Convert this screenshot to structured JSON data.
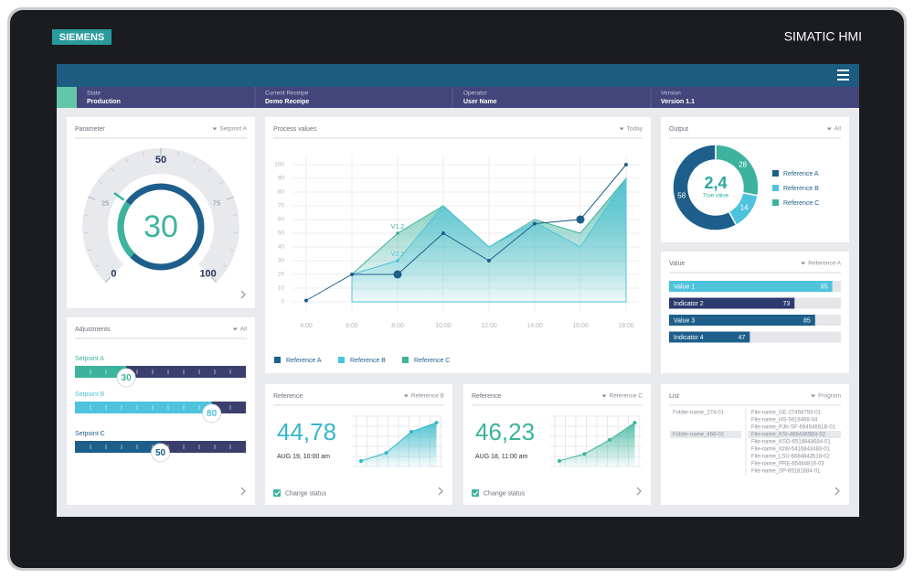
{
  "header": {
    "brand": "SIEMENS",
    "product": "SIMATIC HMI"
  },
  "status": [
    {
      "label": "State",
      "value": "Production"
    },
    {
      "label": "Current Receipe",
      "value": "Demo Receipe"
    },
    {
      "label": "Operator",
      "value": "User Name"
    },
    {
      "label": "Version",
      "value": "Version 1.1"
    }
  ],
  "parameter": {
    "title": "Parameter",
    "selector": "Setpoint A",
    "value": 30,
    "lim": [
      0,
      100
    ],
    "ticks": [
      0,
      25,
      50,
      75,
      100
    ]
  },
  "adjustments": {
    "title": "Adjustments",
    "selector": "All",
    "lim": [
      0,
      100
    ],
    "sliders": [
      {
        "name": "Setpoint A",
        "value": 30,
        "color": "#3db39e"
      },
      {
        "name": "Setpoint B",
        "value": 80,
        "color": "#4ec3dc"
      },
      {
        "name": "Setpoint C",
        "value": 50,
        "color": "#1d5f8a"
      }
    ]
  },
  "process": {
    "type": "line",
    "title": "Process values",
    "selector": "Today",
    "categories": [
      "4:00",
      "6:00",
      "8:00",
      "10:00",
      "12:00",
      "14:00",
      "16:00",
      "18:00"
    ],
    "ylim": [
      0,
      100
    ],
    "yticks": [
      0,
      10,
      20,
      30,
      40,
      50,
      60,
      70,
      80,
      90,
      100
    ],
    "grid": true,
    "series": [
      {
        "name": "Reference A",
        "color": "#1d5f8a",
        "style": "line",
        "values": [
          1,
          20,
          20,
          50,
          30,
          57,
          60,
          100
        ]
      },
      {
        "name": "Reference B",
        "color": "#4ec3dc",
        "style": "area",
        "values": [
          null,
          20,
          30,
          70,
          40,
          58,
          40,
          90
        ]
      },
      {
        "name": "Reference C",
        "color": "#3db39e",
        "style": "area",
        "values": [
          null,
          20,
          50,
          70,
          40,
          60,
          50,
          90
        ]
      }
    ],
    "annotations": [
      "V1.2",
      "V2.1"
    ]
  },
  "output": {
    "type": "donut",
    "title": "Output",
    "selector": "All",
    "center_value": "2,4",
    "center_label": "True value",
    "series": [
      {
        "name": "Reference A",
        "color": "#1d5f8a",
        "value": 58
      },
      {
        "name": "Reference B",
        "color": "#4ec3dc",
        "value": 14
      },
      {
        "name": "Reference C",
        "color": "#3db39e",
        "value": 28
      }
    ]
  },
  "value_panel": {
    "type": "bar",
    "title": "Value",
    "selector": "Reference A",
    "xlim": [
      0,
      100
    ],
    "bars": [
      {
        "name": "Value 1",
        "value": 95,
        "color": "#4ec3dc"
      },
      {
        "name": "Indicator 2",
        "value": 73,
        "color": "#2d3a6e"
      },
      {
        "name": "Value 3",
        "value": 85,
        "color": "#1d5f8a"
      },
      {
        "name": "Indicator 4",
        "value": 47,
        "color": "#1d5f8a"
      }
    ]
  },
  "references": [
    {
      "title": "Reference",
      "selector": "Reference B",
      "value": "44,78",
      "date": "AUG 19, 10:00 am",
      "checkbox": "Change status",
      "color": "#33b7c9",
      "ylim": [
        0,
        100
      ],
      "values": [
        11,
        27,
        69,
        87
      ]
    },
    {
      "title": "Reference",
      "selector": "Reference C",
      "value": "46,23",
      "date": "AUG 18, 11:00 am",
      "checkbox": "Change status",
      "color": "#3ab49a",
      "ylim": [
        0,
        100
      ],
      "values": [
        11,
        25,
        53,
        87
      ]
    }
  ],
  "list": {
    "title": "List",
    "selector": "Program",
    "folders": [
      "Folder-name_274-01",
      "Folder-name_468-02"
    ],
    "files": [
      "File-name_GE-27458793-01",
      "File-name_HS-5618468-04",
      "File-name_PJK-SF-69454661B-01",
      "File-name_KSI-4684465B4-02",
      "File-name_KSO-6516848684-01",
      "File-name_IOW-5416843483-01",
      "File-name_LSU-6684843518-02",
      "File-name_PRE-65484816-03",
      "File-name_SP-65181684-01"
    ]
  }
}
